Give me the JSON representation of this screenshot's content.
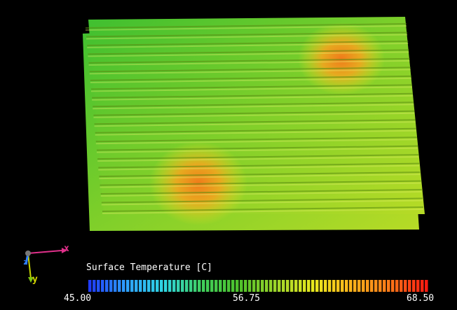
{
  "viewer": {
    "scalar_field": "Surface Temperature",
    "legend_title": "Surface Temperature [C]",
    "range": [
      45.0,
      68.5
    ],
    "tick_labels": [
      "45.00",
      "56.75",
      "68.50"
    ],
    "colormap": "rainbow",
    "colormap_stops": [
      "#1f3cff",
      "#2ea2ff",
      "#2fd6e0",
      "#3fcf5c",
      "#4ec02a",
      "#9ed62a",
      "#e8e81e",
      "#ffb31a",
      "#ff7a18",
      "#ff1a10"
    ]
  },
  "model": {
    "plate_count": 2,
    "fin_count": 22,
    "hotspots": [
      {
        "name": "upper-right",
        "peak_temperature": 66.5
      },
      {
        "name": "lower-left",
        "peak_temperature": 67.5
      }
    ],
    "base_temperature": 60.0
  },
  "axes": {
    "x_label": "x",
    "y_label": "y",
    "z_label": "z",
    "x_color": "#e0308a",
    "y_color": "#d7d700",
    "z_color": "#2e7dff"
  }
}
